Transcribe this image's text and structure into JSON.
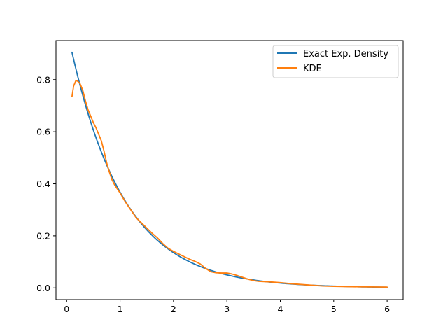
{
  "chart_data": {
    "type": "line",
    "title": "",
    "xlabel": "",
    "ylabel": "",
    "xlim": [
      -0.2,
      6.3
    ],
    "ylim": [
      -0.045,
      0.95
    ],
    "x_ticks": [
      0,
      1,
      2,
      3,
      4,
      5,
      6
    ],
    "x_tick_labels": [
      "0",
      "1",
      "2",
      "3",
      "4",
      "5",
      "6"
    ],
    "y_ticks": [
      0.0,
      0.2,
      0.4,
      0.6,
      0.8
    ],
    "y_tick_labels": [
      "0.0",
      "0.2",
      "0.4",
      "0.6",
      "0.8"
    ],
    "grid": false,
    "legend_position": "top-right",
    "series": [
      {
        "name": "Exact Exp. Density",
        "color": "#1f77b4",
        "function": "exp(-x)",
        "x_range": [
          0.1,
          6.0
        ]
      },
      {
        "name": "KDE",
        "color": "#ff7f0e",
        "points": [
          [
            0.1,
            0.735
          ],
          [
            0.13,
            0.775
          ],
          [
            0.17,
            0.795
          ],
          [
            0.2,
            0.795
          ],
          [
            0.25,
            0.785
          ],
          [
            0.3,
            0.76
          ],
          [
            0.35,
            0.72
          ],
          [
            0.4,
            0.685
          ],
          [
            0.45,
            0.66
          ],
          [
            0.5,
            0.635
          ],
          [
            0.55,
            0.615
          ],
          [
            0.6,
            0.59
          ],
          [
            0.65,
            0.565
          ],
          [
            0.7,
            0.525
          ],
          [
            0.75,
            0.48
          ],
          [
            0.8,
            0.445
          ],
          [
            0.85,
            0.415
          ],
          [
            0.9,
            0.395
          ],
          [
            0.95,
            0.38
          ],
          [
            1.0,
            0.365
          ],
          [
            1.1,
            0.33
          ],
          [
            1.2,
            0.3
          ],
          [
            1.3,
            0.27
          ],
          [
            1.4,
            0.25
          ],
          [
            1.5,
            0.23
          ],
          [
            1.6,
            0.21
          ],
          [
            1.7,
            0.192
          ],
          [
            1.8,
            0.17
          ],
          [
            1.9,
            0.152
          ],
          [
            2.0,
            0.14
          ],
          [
            2.1,
            0.13
          ],
          [
            2.2,
            0.12
          ],
          [
            2.3,
            0.11
          ],
          [
            2.4,
            0.102
          ],
          [
            2.5,
            0.092
          ],
          [
            2.6,
            0.075
          ],
          [
            2.7,
            0.062
          ],
          [
            2.8,
            0.058
          ],
          [
            2.9,
            0.057
          ],
          [
            3.0,
            0.057
          ],
          [
            3.1,
            0.053
          ],
          [
            3.2,
            0.047
          ],
          [
            3.3,
            0.04
          ],
          [
            3.4,
            0.033
          ],
          [
            3.5,
            0.028
          ],
          [
            3.6,
            0.025
          ],
          [
            3.8,
            0.023
          ],
          [
            4.0,
            0.02
          ],
          [
            4.2,
            0.016
          ],
          [
            4.4,
            0.013
          ],
          [
            4.6,
            0.01
          ],
          [
            4.8,
            0.007
          ],
          [
            5.0,
            0.006
          ],
          [
            5.5,
            0.004
          ],
          [
            6.0,
            0.003
          ]
        ]
      }
    ]
  }
}
